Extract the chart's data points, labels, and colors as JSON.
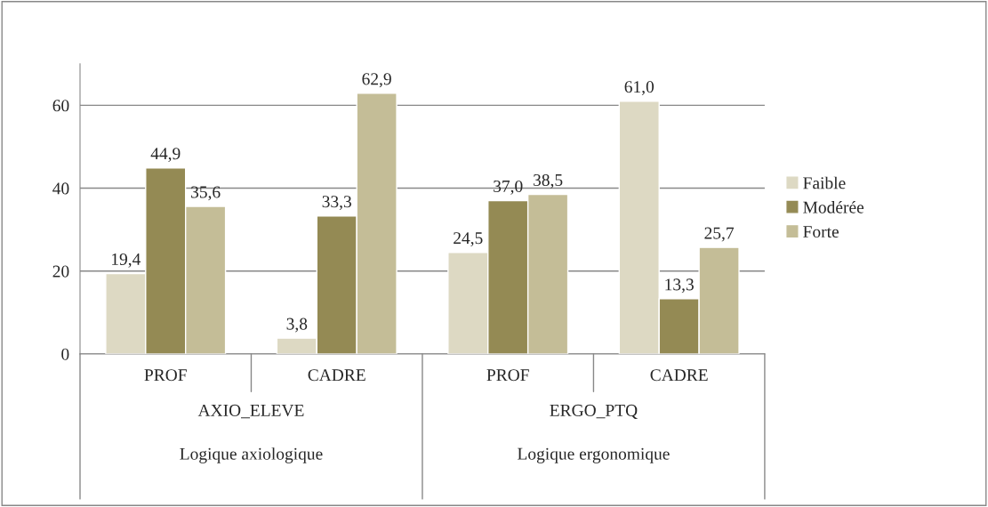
{
  "chart_data": {
    "type": "bar",
    "categories": [
      "PROF",
      "CADRE",
      "PROF",
      "CADRE"
    ],
    "series": [
      {
        "name": "Faible",
        "color": "#ddd9c3",
        "values": [
          19.4,
          3.8,
          24.5,
          61.0
        ],
        "value_labels": [
          "19,4",
          "3,8",
          "24,5",
          "61,0"
        ]
      },
      {
        "name": "Modérée",
        "color": "#948a54",
        "values": [
          44.9,
          33.3,
          37.0,
          13.3
        ],
        "value_labels": [
          "44,9",
          "33,3",
          "37,0",
          "13,3"
        ]
      },
      {
        "name": "Forte",
        "color": "#c4bd97",
        "values": [
          35.6,
          62.9,
          38.5,
          25.7
        ],
        "value_labels": [
          "35,6",
          "62,9",
          "38,5",
          "25,7"
        ]
      }
    ],
    "annotations": [
      "AXIO_ELEVE",
      "ERGO_PTQ",
      "Logique axiologique",
      "Logique ergonomique"
    ],
    "ylim": [
      0,
      70
    ],
    "yticks": [
      0,
      20,
      40,
      60
    ],
    "grid": "y",
    "legend": "right"
  }
}
